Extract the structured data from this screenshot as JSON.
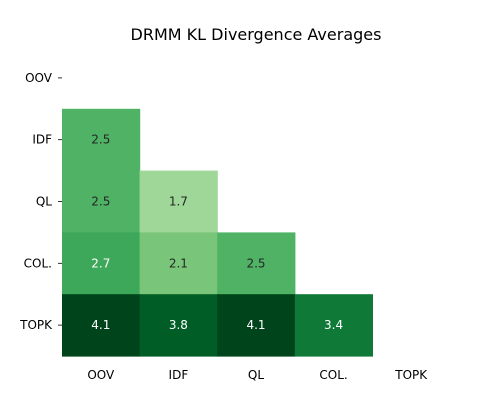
{
  "chart_data": {
    "type": "heatmap",
    "title": "DRMM KL Divergence Averages",
    "xlabel": "",
    "ylabel": "",
    "x_categories": [
      "OOV",
      "IDF",
      "QL",
      "COL.",
      "TOPK"
    ],
    "y_categories": [
      "OOV",
      "IDF",
      "QL",
      "COL.",
      "TOPK"
    ],
    "mask": "upper-triangle-including-diagonal",
    "colormap": "Greens",
    "color_range": [
      0,
      4.1
    ],
    "cells": [
      {
        "row": "IDF",
        "col": "OOV",
        "value": 2.5
      },
      {
        "row": "QL",
        "col": "OOV",
        "value": 2.5
      },
      {
        "row": "QL",
        "col": "IDF",
        "value": 1.7
      },
      {
        "row": "COL.",
        "col": "OOV",
        "value": 2.7
      },
      {
        "row": "COL.",
        "col": "IDF",
        "value": 2.1
      },
      {
        "row": "COL.",
        "col": "QL",
        "value": 2.5
      },
      {
        "row": "TOPK",
        "col": "OOV",
        "value": 4.1
      },
      {
        "row": "TOPK",
        "col": "IDF",
        "value": 3.8
      },
      {
        "row": "TOPK",
        "col": "QL",
        "value": 4.1
      },
      {
        "row": "TOPK",
        "col": "COL.",
        "value": 3.4
      }
    ],
    "colorbar": false,
    "grid": false
  }
}
